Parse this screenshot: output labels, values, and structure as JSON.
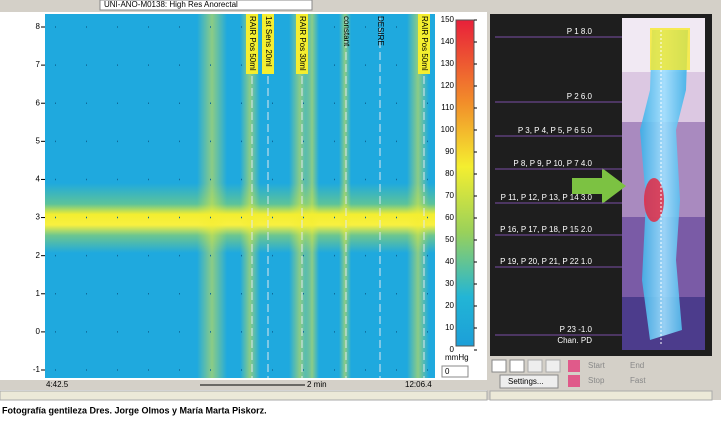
{
  "toolbar": {
    "study": "UNI-ANO-M0138: High Res Anorectal"
  },
  "plot": {
    "yticks": [
      8,
      7,
      6,
      5,
      4,
      3,
      2,
      1,
      0,
      -1
    ],
    "events": [
      "RAIR Pos 50ml",
      "1st Sens 20ml",
      "RAIR Pos 30ml",
      "constant",
      "DESIRE",
      "RAIR Pos 50ml"
    ],
    "time_start": "4:42.5",
    "time_scale": "2 min",
    "time_end": "12:06.4"
  },
  "color_scale": {
    "ticks": [
      150,
      140,
      130,
      120,
      110,
      100,
      90,
      80,
      70,
      60,
      50,
      40,
      30,
      20,
      10,
      0
    ],
    "unit": "mmHg",
    "min_input": 0
  },
  "sensors": {
    "labels": [
      "P 1 8.0",
      "P 2 6.0",
      "P 3, P 4, P 5, P 6 5.0",
      "P 8, P 9, P 10, P 7 4.0",
      "P 11, P 12, P 13, P 14 3.0",
      "P 16, P 17, P 18, P 15 2.0",
      "P 19, P 20, P 21, P 22 1.0",
      "P 23 -1.0"
    ],
    "header": "Chan. PD"
  },
  "controls": {
    "settings": "Settings...",
    "start": "Start",
    "end": "End",
    "stop": "Stop",
    "fast": "Fast"
  },
  "caption": "Fotografía gentileza Dres. Jorge Olmos y María Marta Piskorz."
}
